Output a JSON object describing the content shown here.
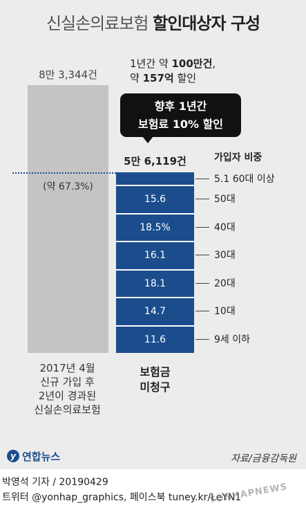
{
  "title": {
    "light": "신실손의료보험",
    "bold": "할인대상자 구성"
  },
  "note": {
    "line1_prefix": "1년간 약 ",
    "line1_bold": "100만건",
    "line1_suffix": ",",
    "line2_prefix": "약 ",
    "line2_bold": "157억",
    "line2_suffix": " 할인"
  },
  "callout": {
    "line1": "향후 1년간",
    "line2": "보험료 10% 할인"
  },
  "share_header": "가입자 비중",
  "chart_data": {
    "type": "bar",
    "title": "신실손의료보험 할인대상자 구성",
    "categories": [
      "2017년 4월 신규 가입 후 2년이 경과된 신실손의료보험",
      "보험금 미청구"
    ],
    "values": [
      83344,
      56119
    ],
    "value_labels": [
      "8만 3,344건",
      "5만 6,119건"
    ],
    "percent_label": "(약 67.3%)",
    "breakdown": {
      "name": "가입자 비중",
      "segments": [
        {
          "label": "60대 이상",
          "value": 5.1,
          "text": "5.1"
        },
        {
          "label": "50대",
          "value": 15.6,
          "text": "15.6"
        },
        {
          "label": "40대",
          "value": 18.5,
          "text": "18.5%"
        },
        {
          "label": "30대",
          "value": 16.1,
          "text": "16.1"
        },
        {
          "label": "20대",
          "value": 18.1,
          "text": "18.1"
        },
        {
          "label": "10대",
          "value": 14.7,
          "text": "14.7"
        },
        {
          "label": "9세 이하",
          "value": 11.6,
          "text": "11.6"
        }
      ]
    }
  },
  "xcat_left": [
    "2017년 4월",
    "신규 가입 후",
    "2년이 경과된",
    "신실손의료보험"
  ],
  "xcat_right": [
    "보험금",
    "미청구"
  ],
  "logo": {
    "mark": "y",
    "text": "연합뉴스"
  },
  "source": "자료/금융감독원",
  "credit": {
    "line1": "박영석 기자 /  20190429",
    "line2": "트위터 @yonhap_graphics, 페이스북 tuney.kr/LeYN1"
  },
  "watermark": "YONHAPNEWS",
  "colors": {
    "segment": "#1b4d8d",
    "total_bar": "#c4c4c4",
    "panel": "#ececec"
  }
}
